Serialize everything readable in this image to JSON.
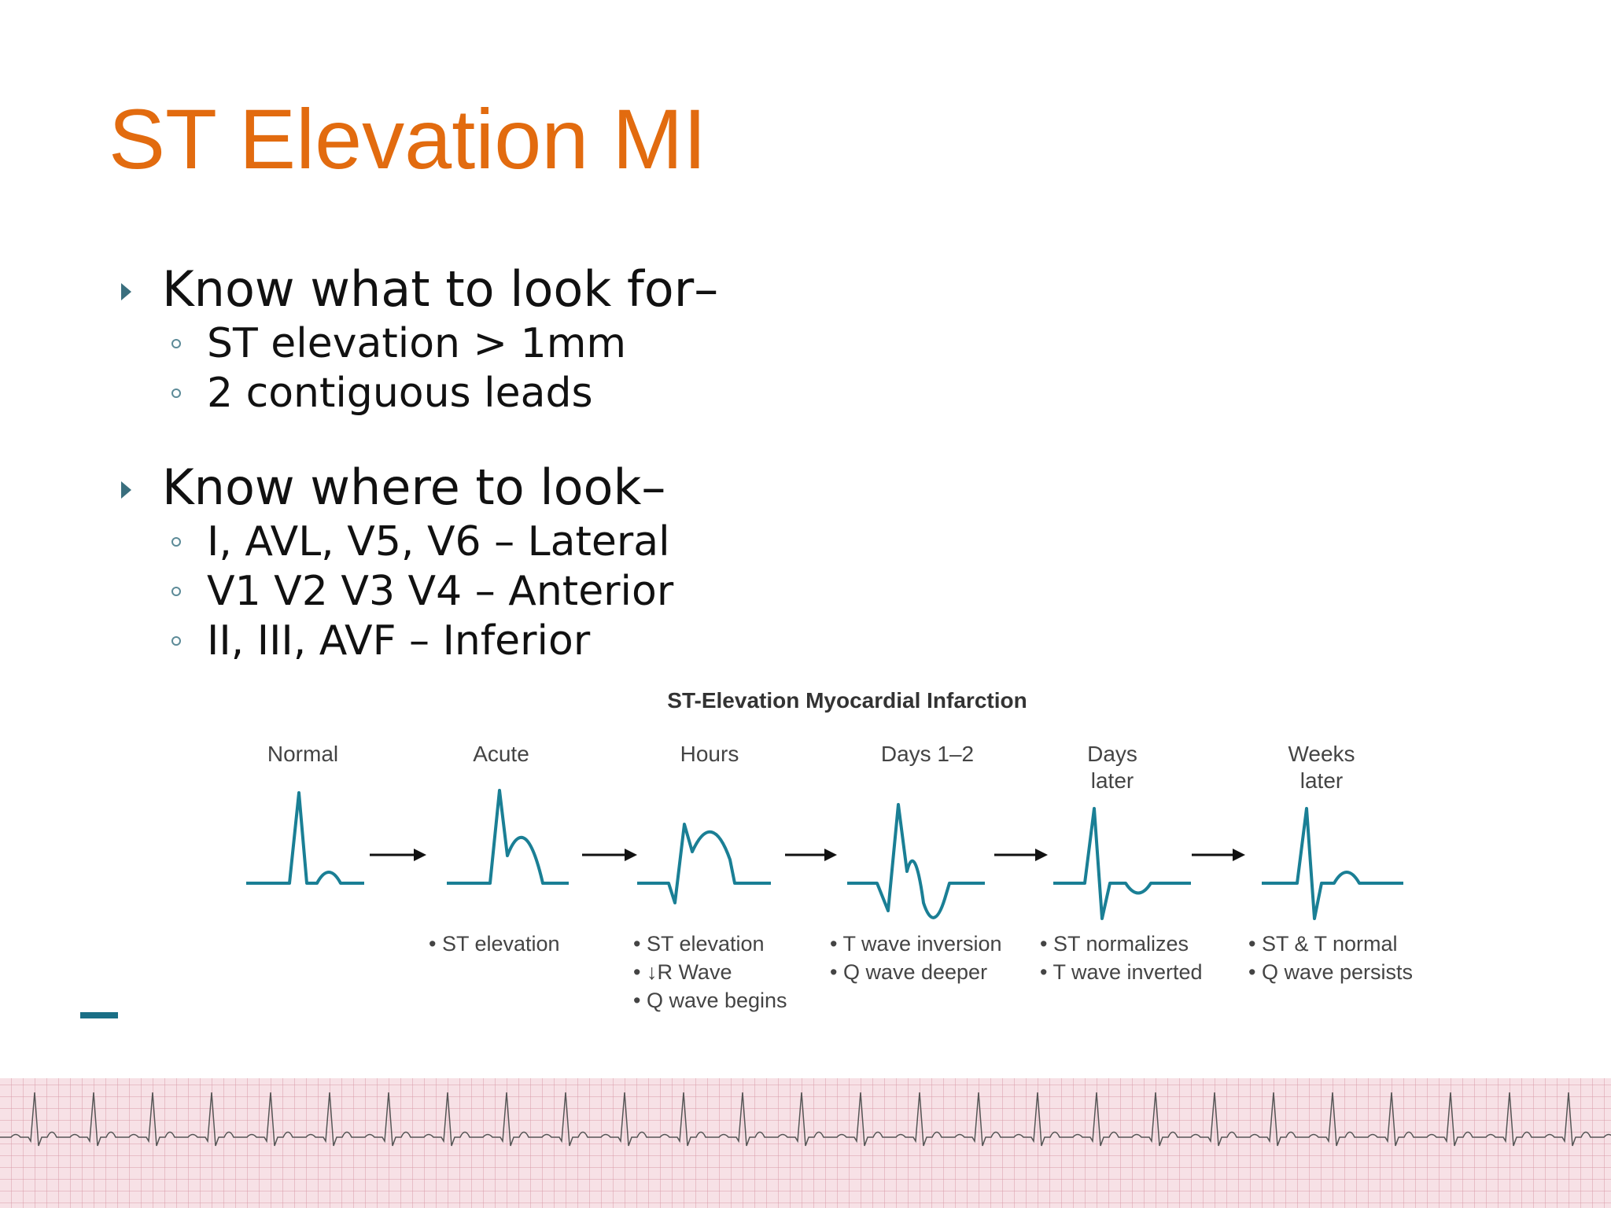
{
  "title": "ST Elevation MI",
  "bullets": [
    {
      "text": "Know what to look for–",
      "items": [
        "ST elevation > 1mm",
        "2 contiguous leads"
      ]
    },
    {
      "text": "Know where to look–",
      "items": [
        "I, AVL, V5, V6 – Lateral",
        "V1 V2 V3 V4 – Anterior",
        "II, III, AVF – Inferior"
      ]
    }
  ],
  "figure": {
    "title": "ST-Elevation Myocardial Infarction",
    "stages": [
      {
        "label": [
          "Normal"
        ],
        "notes": []
      },
      {
        "label": [
          "Acute"
        ],
        "notes": [
          "• ST elevation"
        ]
      },
      {
        "label": [
          "Hours"
        ],
        "notes": [
          "• ST elevation",
          "• ↓R Wave",
          "• Q wave begins"
        ]
      },
      {
        "label": [
          "Days 1–2"
        ],
        "notes": [
          "• T wave inversion",
          "• Q wave deeper"
        ]
      },
      {
        "label": [
          "Days",
          "later"
        ],
        "notes": [
          "• ST normalizes",
          "• T wave inverted"
        ]
      },
      {
        "label": [
          "Weeks",
          "later"
        ],
        "notes": [
          "• ST & T normal",
          "• Q wave persists"
        ]
      }
    ]
  }
}
